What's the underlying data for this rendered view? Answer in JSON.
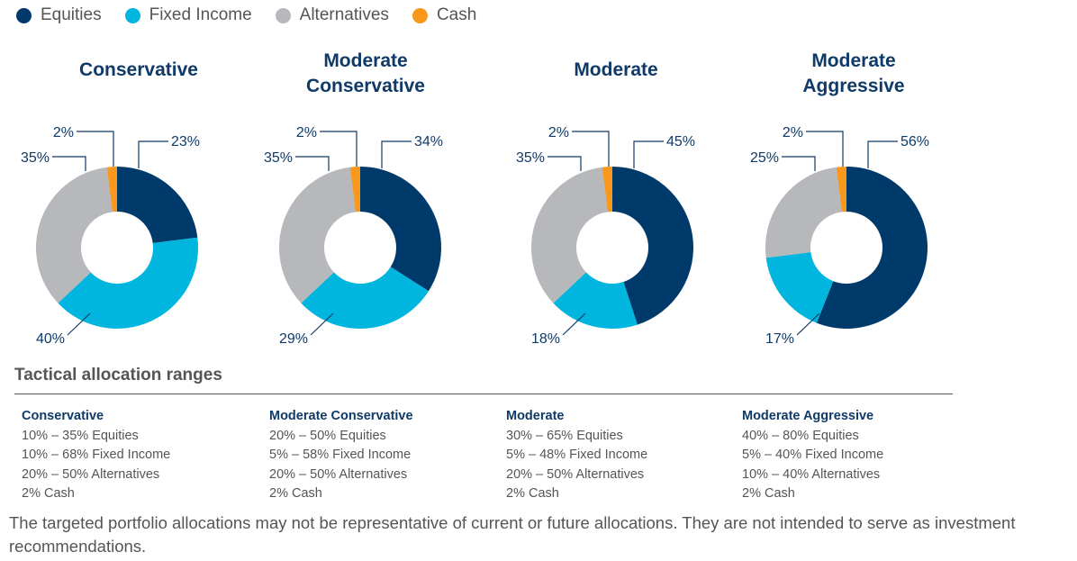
{
  "legend": [
    {
      "label": "Equities",
      "color": "#003a6a"
    },
    {
      "label": "Fixed Income",
      "color": "#00b5de"
    },
    {
      "label": "Alternatives",
      "color": "#b7b8bb"
    },
    {
      "label": "Cash",
      "color": "#f7981d"
    }
  ],
  "chart_data": [
    {
      "type": "pie",
      "title": "Conservative",
      "categories": [
        "Equities",
        "Fixed Income",
        "Alternatives",
        "Cash"
      ],
      "values": [
        23,
        40,
        35,
        2
      ],
      "labels": [
        "23%",
        "40%",
        "35%",
        "2%"
      ]
    },
    {
      "type": "pie",
      "title": "Moderate Conservative",
      "categories": [
        "Equities",
        "Fixed Income",
        "Alternatives",
        "Cash"
      ],
      "values": [
        34,
        29,
        35,
        2
      ],
      "labels": [
        "34%",
        "29%",
        "35%",
        "2%"
      ]
    },
    {
      "type": "pie",
      "title": "Moderate",
      "categories": [
        "Equities",
        "Fixed Income",
        "Alternatives",
        "Cash"
      ],
      "values": [
        45,
        18,
        35,
        2
      ],
      "labels": [
        "45%",
        "18%",
        "35%",
        "2%"
      ]
    },
    {
      "type": "pie",
      "title": "Moderate Aggressive",
      "categories": [
        "Equities",
        "Fixed Income",
        "Alternatives",
        "Cash"
      ],
      "values": [
        56,
        17,
        25,
        2
      ],
      "labels": [
        "56%",
        "17%",
        "25%",
        "2%"
      ]
    }
  ],
  "titles": [
    [
      "Conservative"
    ],
    [
      "Moderate",
      "Conservative"
    ],
    [
      "Moderate"
    ],
    [
      "Moderate",
      "Aggressive"
    ]
  ],
  "section_title": "Tactical allocation ranges",
  "ranges": [
    {
      "name": "Conservative",
      "lines": [
        "10% – 35% Equities",
        "10% – 68% Fixed Income",
        "20% – 50% Alternatives",
        "2% Cash"
      ]
    },
    {
      "name": "Moderate Conservative",
      "lines": [
        "20% – 50% Equities",
        "5% – 58% Fixed Income",
        "20% – 50% Alternatives",
        "2% Cash"
      ]
    },
    {
      "name": "Moderate",
      "lines": [
        "30% – 65% Equities",
        "5% – 48% Fixed Income",
        "20% – 50% Alternatives",
        "2% Cash"
      ]
    },
    {
      "name": "Moderate Aggressive",
      "lines": [
        "40% – 80% Equities",
        "5% – 40% Fixed Income",
        "10% – 40% Alternatives",
        "2% Cash"
      ]
    }
  ],
  "footnote": "The targeted portfolio allocations may not be representative of current or future allocations. They are not intended to serve as investment recommendations."
}
